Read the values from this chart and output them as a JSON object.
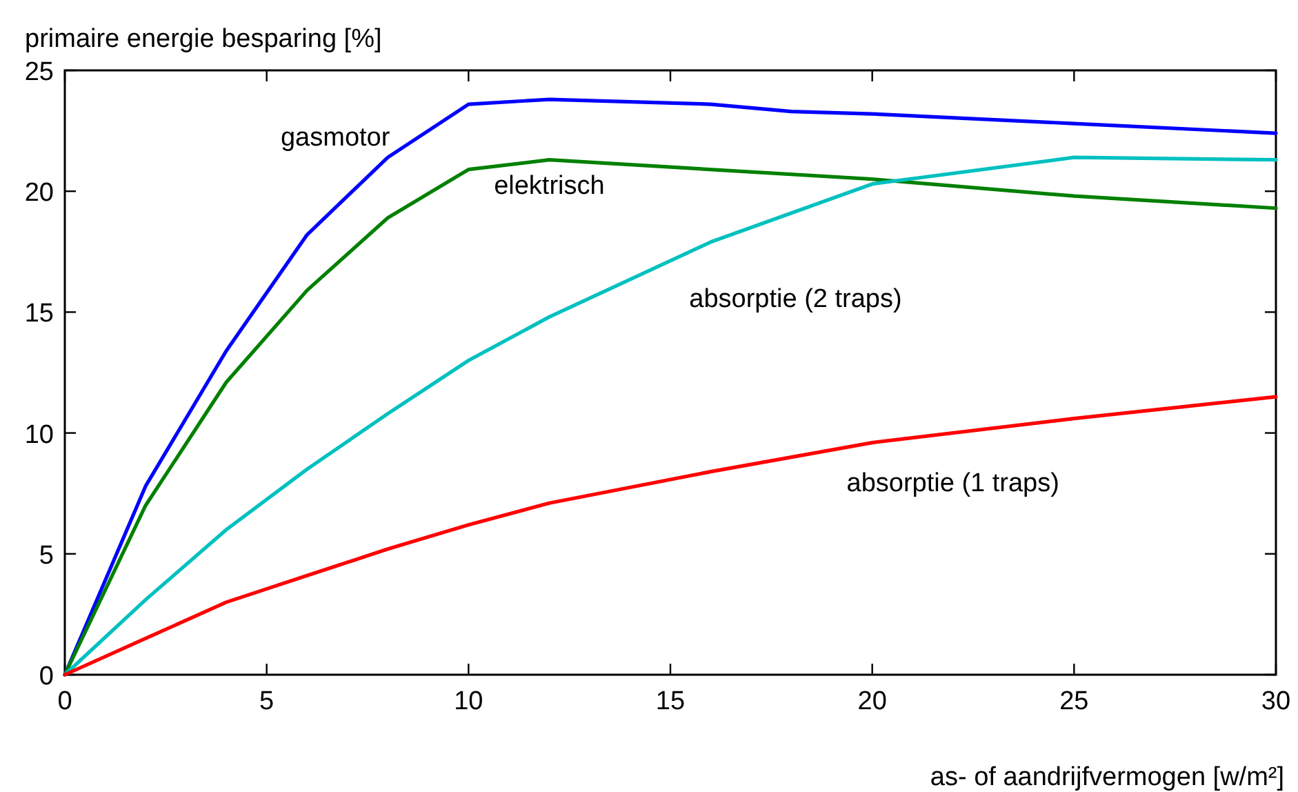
{
  "chart_data": {
    "type": "line",
    "ylabel": "primaire energie besparing [%]",
    "xlabel": "as- of aandrijfvermogen [w/m²]",
    "xlim": [
      0,
      30
    ],
    "xticks": [
      0,
      5,
      10,
      15,
      20,
      25,
      30
    ],
    "ylim": [
      0,
      25
    ],
    "yticks": [
      0,
      5,
      10,
      15,
      20,
      25
    ],
    "grid": false,
    "legend": false,
    "marker": "none",
    "line_style": "solid",
    "series": [
      {
        "name": "gasmotor",
        "color": "#0000ff",
        "x": [
          0,
          2,
          4,
          6,
          8,
          10,
          12,
          16,
          18,
          20,
          25,
          30
        ],
        "values": [
          0,
          7.8,
          13.4,
          18.2,
          21.4,
          23.6,
          23.8,
          23.6,
          23.3,
          23.2,
          22.8,
          22.4
        ]
      },
      {
        "name": "elektrisch",
        "color": "#008000",
        "x": [
          0,
          2,
          4,
          6,
          8,
          10,
          12,
          14,
          20,
          25,
          30
        ],
        "values": [
          0,
          7.0,
          12.1,
          15.9,
          18.9,
          20.9,
          21.3,
          21.1,
          20.5,
          19.8,
          19.3
        ]
      },
      {
        "name": "absorptie (2 traps)",
        "color": "#00c0c0",
        "x": [
          0,
          2,
          4,
          6,
          8,
          10,
          12,
          16,
          20,
          25,
          30
        ],
        "values": [
          0,
          3.1,
          6.0,
          8.5,
          10.8,
          13.0,
          14.8,
          17.9,
          20.3,
          21.4,
          21.3
        ]
      },
      {
        "name": "absorptie (1 traps)",
        "color": "#ff0000",
        "x": [
          0,
          2,
          4,
          6,
          8,
          10,
          12,
          16,
          18,
          20,
          25,
          30
        ],
        "values": [
          0,
          1.5,
          3.0,
          4.1,
          5.2,
          6.2,
          7.1,
          8.4,
          9.0,
          9.6,
          10.6,
          11.5
        ]
      }
    ]
  }
}
